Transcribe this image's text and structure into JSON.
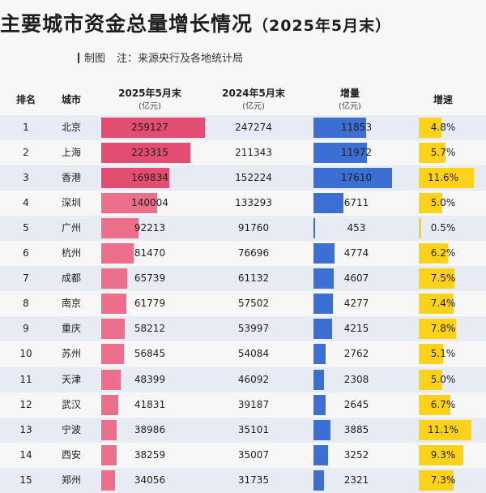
{
  "title": "主要城市资金总量增长情况",
  "subtitle": "（2025年5月末）",
  "credit": "制图",
  "note": "注：来源央行及各地统计局",
  "columns": {
    "rank": "排名",
    "city": "城市",
    "v2025": "2025年5月末",
    "v2025_unit": "(亿元)",
    "v2024": "2024年5月末",
    "v2024_unit": "(亿元)",
    "increase": "增量",
    "increase_unit": "(亿元)",
    "growth": "增速"
  },
  "colors": {
    "bar_2025": "#ec6e8a",
    "bar_increase": "#3c6fd2",
    "bar_growth": "#ffd21a",
    "row_alt": "#e6ebf4"
  },
  "chart_data": {
    "type": "table",
    "rows": [
      {
        "rank": "1",
        "city": "北京",
        "v2025": 259127,
        "v2024": 247274,
        "increase": 11853,
        "growth": "4.8%"
      },
      {
        "rank": "2",
        "city": "上海",
        "v2025": 223315,
        "v2024": 211343,
        "increase": 11972,
        "growth": "5.7%"
      },
      {
        "rank": "3",
        "city": "香港",
        "v2025": 169834,
        "v2024": 152224,
        "increase": 17610,
        "growth": "11.6%"
      },
      {
        "rank": "4",
        "city": "深圳",
        "v2025": 140004,
        "v2024": 133293,
        "increase": 6711,
        "growth": "5.0%"
      },
      {
        "rank": "5",
        "city": "广州",
        "v2025": 92213,
        "v2024": 91760,
        "increase": 453,
        "growth": "0.5%"
      },
      {
        "rank": "6",
        "city": "杭州",
        "v2025": 81470,
        "v2024": 76696,
        "increase": 4774,
        "growth": "6.2%"
      },
      {
        "rank": "7",
        "city": "成都",
        "v2025": 65739,
        "v2024": 61132,
        "increase": 4607,
        "growth": "7.5%"
      },
      {
        "rank": "8",
        "city": "南京",
        "v2025": 61779,
        "v2024": 57502,
        "increase": 4277,
        "growth": "7.4%"
      },
      {
        "rank": "9",
        "city": "重庆",
        "v2025": 58212,
        "v2024": 53997,
        "increase": 4215,
        "growth": "7.8%"
      },
      {
        "rank": "10",
        "city": "苏州",
        "v2025": 56845,
        "v2024": 54084,
        "increase": 2762,
        "growth": "5.1%"
      },
      {
        "rank": "11",
        "city": "天津",
        "v2025": 48399,
        "v2024": 46092,
        "increase": 2308,
        "growth": "5.0%"
      },
      {
        "rank": "12",
        "city": "武汉",
        "v2025": 41831,
        "v2024": 39187,
        "increase": 2645,
        "growth": "6.7%"
      },
      {
        "rank": "13",
        "city": "宁波",
        "v2025": 38986,
        "v2024": 35101,
        "increase": 3885,
        "growth": "11.1%"
      },
      {
        "rank": "14",
        "city": "西安",
        "v2025": 38259,
        "v2024": 35007,
        "increase": 3252,
        "growth": "9.3%"
      },
      {
        "rank": "15",
        "city": "郑州",
        "v2025": 34056,
        "v2024": 31735,
        "increase": 2321,
        "growth": "7.3%"
      }
    ]
  }
}
